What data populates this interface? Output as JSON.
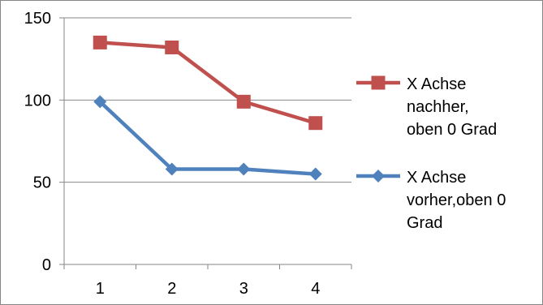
{
  "chart_data": {
    "type": "line",
    "x": [
      "1",
      "2",
      "3",
      "4"
    ],
    "ylim": [
      0,
      150
    ],
    "yticks": [
      0,
      50,
      100,
      150
    ],
    "grid": "horizontal",
    "legend_position": "right",
    "series": [
      {
        "name": "X Achse nachher, oben 0 Grad",
        "legend_lines": [
          "X Achse",
          "nachher,",
          "oben 0 Grad"
        ],
        "values": [
          135,
          132,
          99,
          86
        ],
        "color": "#c0504d",
        "marker": "square"
      },
      {
        "name": "X Achse vorher,oben 0 Grad",
        "legend_lines": [
          "X Achse",
          "vorher,oben 0",
          "Grad"
        ],
        "values": [
          99,
          58,
          58,
          55
        ],
        "color": "#4f81bd",
        "marker": "diamond"
      }
    ]
  }
}
